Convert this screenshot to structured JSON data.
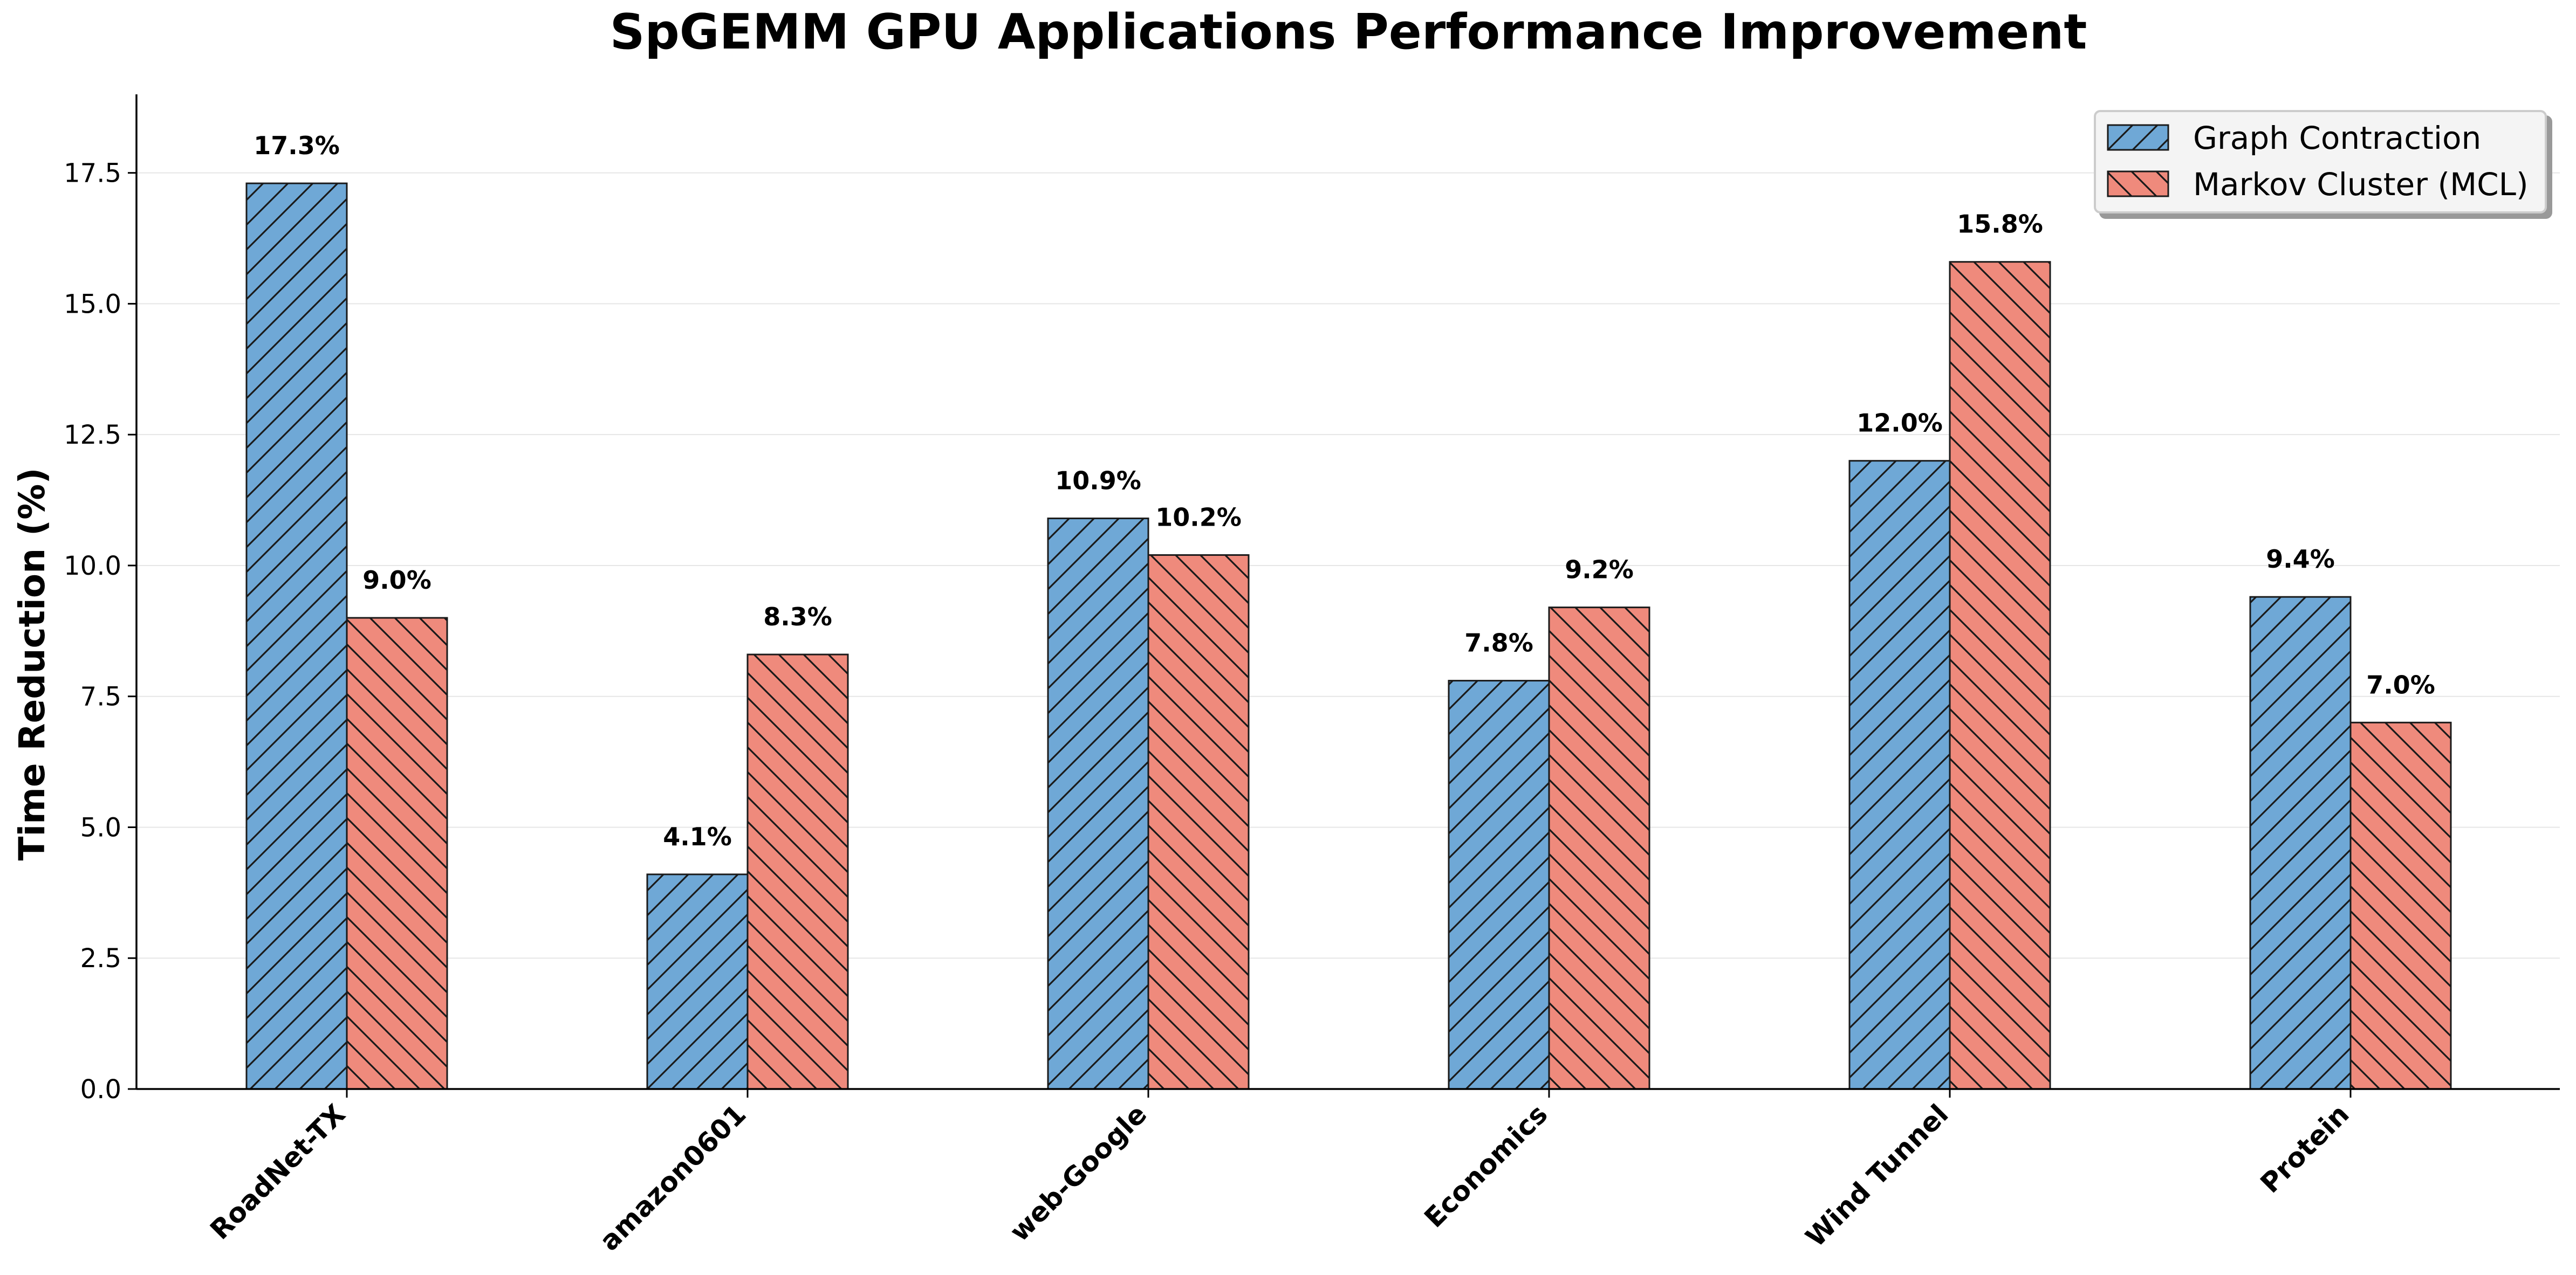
{
  "chart_data": {
    "type": "bar",
    "title": "SpGEMM GPU Applications Performance Improvement",
    "xlabel": "",
    "ylabel": "Time Reduction (%)",
    "ylim": [
      0,
      19
    ],
    "yticks": [
      0.0,
      2.5,
      5.0,
      7.5,
      10.0,
      12.5,
      15.0,
      17.5
    ],
    "ytick_labels": [
      "0.0",
      "2.5",
      "5.0",
      "7.5",
      "10.0",
      "12.5",
      "15.0",
      "17.5"
    ],
    "grid": "horizontal",
    "legend_position": "top-right",
    "categories": [
      "RoadNet-TX",
      "amazon0601",
      "web-Google",
      "Economics",
      "Wind Tunnel",
      "Protein"
    ],
    "series": [
      {
        "name": "Graph Contraction",
        "color": "#6fa8d6",
        "hatch": "forward",
        "values": [
          17.3,
          4.1,
          10.9,
          7.8,
          12.0,
          9.4
        ],
        "labels": [
          "17.3%",
          "4.1%",
          "10.9%",
          "7.8%",
          "12.0%",
          "9.4%"
        ]
      },
      {
        "name": "Markov Cluster (MCL)",
        "color": "#ef8a7c",
        "hatch": "back",
        "values": [
          9.0,
          8.3,
          10.2,
          9.2,
          15.8,
          7.0
        ],
        "labels": [
          "9.0%",
          "8.3%",
          "10.2%",
          "9.2%",
          "15.8%",
          "7.0%"
        ]
      }
    ]
  }
}
